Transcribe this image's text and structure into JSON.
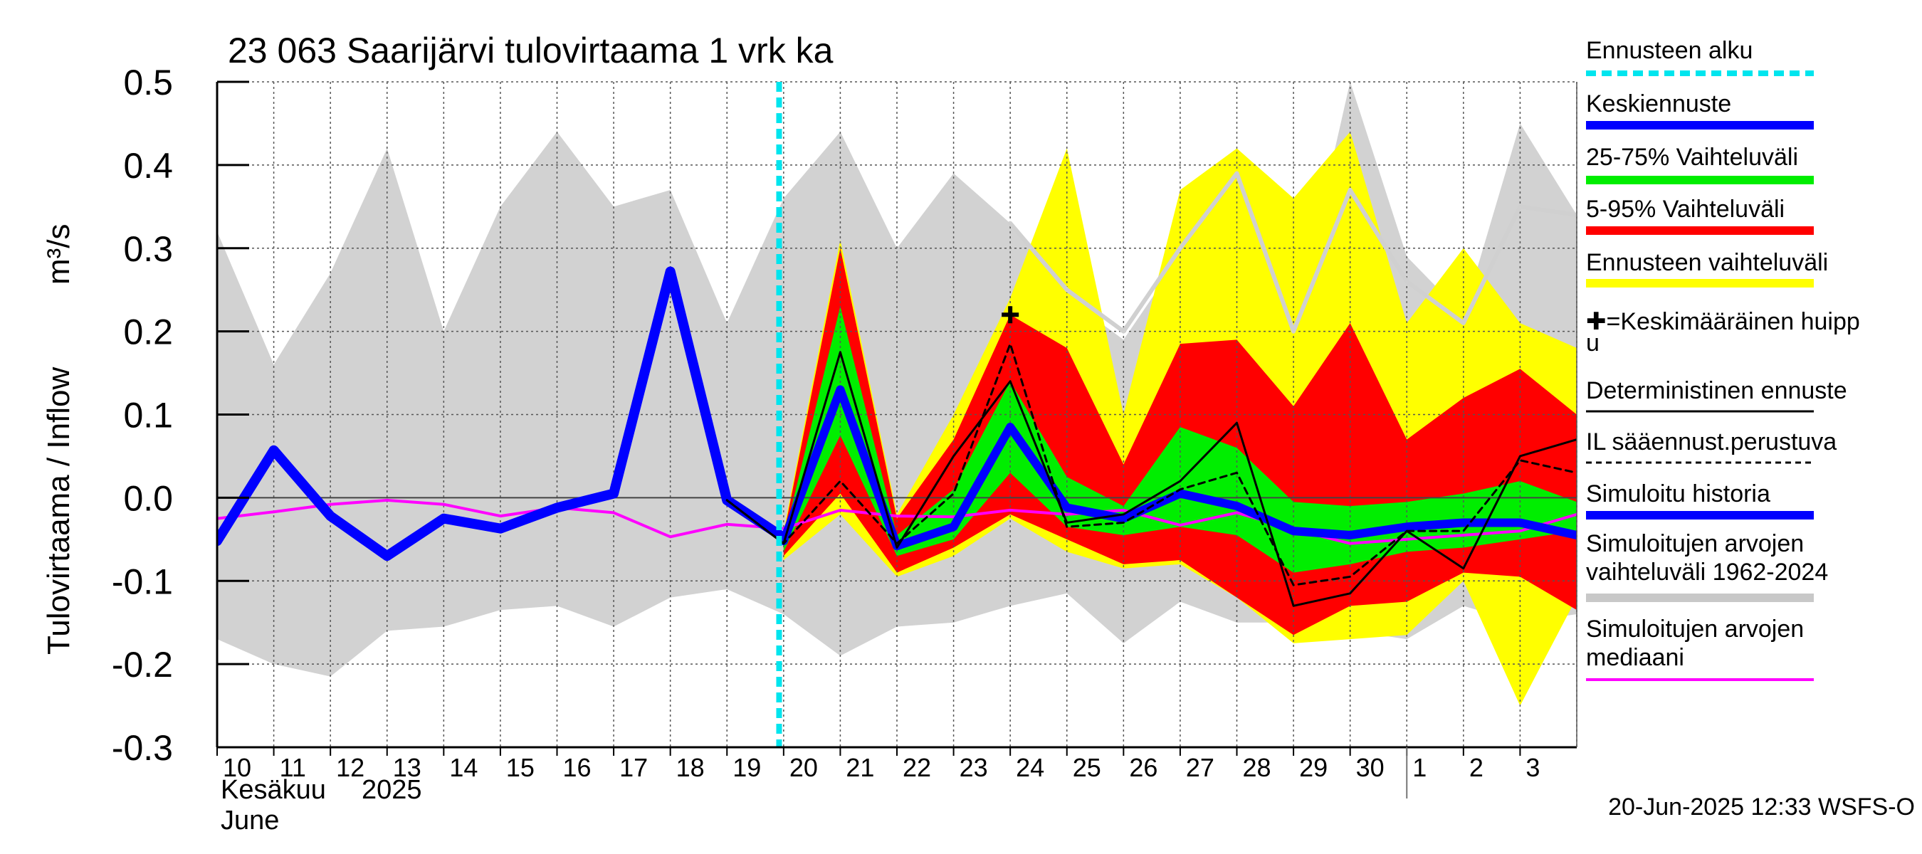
{
  "chart_data": {
    "type": "area",
    "title": "23 063 Saarijärvi tulovirtaama 1 vrk ka",
    "ylabel_fi": "Tulovirtaama / Inflow",
    "yunit": "m³/s",
    "ylim": [
      -0.3,
      0.5
    ],
    "yticks": [
      "0.5",
      "0.4",
      "0.3",
      "0.2",
      "0.1",
      "0.0",
      "-0.1",
      "-0.2",
      "-0.3"
    ],
    "grid": true,
    "x_start_day": 10,
    "x_days": 24,
    "xtick_labels": [
      "10",
      "11",
      "12",
      "13",
      "14",
      "15",
      "16",
      "17",
      "18",
      "19",
      "20",
      "21",
      "22",
      "23",
      "24",
      "25",
      "26",
      "27",
      "28",
      "29",
      "30",
      "1",
      "2",
      "3"
    ],
    "month_label_fi": "Kesäkuu",
    "year_label": "2025",
    "month_label_en": "June",
    "forecast_start_day": 20,
    "timestamp": "20-Jun-2025 12:33 WSFS-O",
    "legend_position": "right",
    "legend": [
      {
        "label": "Ennusteen alku",
        "color": "#00e5ee",
        "style": "dashed"
      },
      {
        "label": "Keskiennuste",
        "color": "#0000ff",
        "style": "thick"
      },
      {
        "label": "25-75% Vaihteluväli",
        "color": "#00ee00",
        "style": "thick"
      },
      {
        "label": "5-95% Vaihteluväli",
        "color": "#ff0000",
        "style": "thick"
      },
      {
        "label": "Ennusteen vaihteluväli",
        "color": "#ffff00",
        "style": "thick"
      },
      {
        "label": "✚=Keskimääräinen huippu",
        "color": "#000000",
        "style": "none"
      },
      {
        "label": "Deterministinen ennuste",
        "color": "#000000",
        "style": "thin"
      },
      {
        "label": "IL sääennust.perustuva",
        "color": "#000000",
        "style": "dotted"
      },
      {
        "label": "Simuloitu historia",
        "color": "#0000ff",
        "style": "thick"
      },
      {
        "label": "Simuloitujen arvojen vaihteluväli 1962-2024",
        "color": "#c8c8c8",
        "style": "thick"
      },
      {
        "label": "Simuloitujen arvojen mediaani",
        "color": "#ff00ff",
        "style": "medium"
      }
    ],
    "series": [
      {
        "name": "Simuloitujen arvojen vaihteluväli 1962-2024 max",
        "x": [
          10,
          11,
          12,
          13,
          14,
          15,
          16,
          17,
          18,
          19,
          20,
          21,
          22,
          23,
          24,
          25,
          26,
          27,
          28,
          29,
          30,
          31,
          32,
          33,
          34
        ],
        "values": [
          0.32,
          0.16,
          0.27,
          0.42,
          0.2,
          0.35,
          0.44,
          0.35,
          0.37,
          0.21,
          0.36,
          0.44,
          0.3,
          0.39,
          0.33,
          0.24,
          0.19,
          0.29,
          0.4,
          0.2,
          0.5,
          0.29,
          0.22,
          0.45,
          0.34
        ]
      },
      {
        "name": "Simuloitujen arvojen vaihteluväli 1962-2024 min",
        "x": [
          10,
          11,
          12,
          13,
          14,
          15,
          16,
          17,
          18,
          19,
          20,
          21,
          22,
          23,
          24,
          25,
          26,
          27,
          28,
          29,
          30,
          31,
          32,
          33,
          34
        ],
        "values": [
          -0.17,
          -0.2,
          -0.215,
          -0.16,
          -0.155,
          -0.135,
          -0.13,
          -0.155,
          -0.12,
          -0.11,
          -0.14,
          -0.19,
          -0.155,
          -0.15,
          -0.13,
          -0.115,
          -0.175,
          -0.125,
          -0.15,
          -0.15,
          -0.16,
          -0.17,
          -0.13,
          -0.15,
          -0.14
        ]
      },
      {
        "name": "Simuloitujen arvojen mediaani",
        "x": [
          10,
          11,
          12,
          13,
          14,
          15,
          16,
          17,
          18,
          19,
          20,
          21,
          22,
          23,
          24,
          25,
          26,
          27,
          28,
          29,
          30,
          31,
          32,
          33,
          34
        ],
        "values": [
          -0.025,
          -0.017,
          -0.008,
          -0.003,
          -0.008,
          -0.022,
          -0.012,
          -0.018,
          -0.047,
          -0.032,
          -0.037,
          -0.015,
          -0.022,
          -0.023,
          -0.015,
          -0.02,
          -0.015,
          -0.033,
          -0.018,
          -0.038,
          -0.055,
          -0.05,
          -0.045,
          -0.04,
          -0.02
        ]
      },
      {
        "name": "Simuloitu historia",
        "x": [
          10,
          11,
          12,
          13,
          14,
          15,
          16,
          17,
          18,
          19,
          20
        ],
        "values": [
          -0.052,
          0.057,
          -0.022,
          -0.07,
          -0.025,
          -0.037,
          -0.012,
          0.005,
          0.272,
          -0.003,
          -0.048
        ]
      },
      {
        "name": "Ennusteen vaihteluväli max",
        "x": [
          20,
          21,
          22,
          23,
          24,
          25,
          26,
          27,
          28,
          29,
          30,
          31,
          32,
          33,
          34
        ],
        "values": [
          -0.04,
          0.31,
          -0.02,
          0.1,
          0.24,
          0.42,
          0.1,
          0.37,
          0.42,
          0.36,
          0.44,
          0.21,
          0.3,
          0.21,
          0.18
        ]
      },
      {
        "name": "Ennusteen vaihteluväli min",
        "x": [
          20,
          21,
          22,
          23,
          24,
          25,
          26,
          27,
          28,
          29,
          30,
          31,
          32,
          33,
          34
        ],
        "values": [
          -0.075,
          -0.02,
          -0.095,
          -0.07,
          -0.025,
          -0.065,
          -0.085,
          -0.08,
          -0.12,
          -0.175,
          -0.17,
          -0.165,
          -0.1,
          -0.25,
          -0.12
        ]
      },
      {
        "name": "5-95% Vaihteluväli max",
        "x": [
          20,
          21,
          22,
          23,
          24,
          25,
          26,
          27,
          28,
          29,
          30,
          31,
          32,
          33,
          34
        ],
        "values": [
          -0.045,
          0.3,
          -0.025,
          0.07,
          0.22,
          0.18,
          0.04,
          0.185,
          0.19,
          0.11,
          0.21,
          0.07,
          0.12,
          0.155,
          0.1
        ]
      },
      {
        "name": "5-95% Vaihteluväli min",
        "x": [
          20,
          21,
          22,
          23,
          24,
          25,
          26,
          27,
          28,
          29,
          30,
          31,
          32,
          33,
          34
        ],
        "values": [
          -0.07,
          0.005,
          -0.09,
          -0.06,
          -0.02,
          -0.05,
          -0.08,
          -0.075,
          -0.12,
          -0.165,
          -0.13,
          -0.125,
          -0.09,
          -0.095,
          -0.135
        ]
      },
      {
        "name": "25-75% Vaihteluväli max",
        "x": [
          20,
          21,
          22,
          23,
          24,
          25,
          26,
          27,
          28,
          29,
          30,
          31,
          32,
          33,
          34
        ],
        "values": [
          -0.05,
          0.23,
          -0.045,
          0.01,
          0.14,
          0.025,
          -0.01,
          0.085,
          0.06,
          -0.005,
          -0.01,
          -0.005,
          0.005,
          0.02,
          -0.005
        ]
      },
      {
        "name": "25-75% Vaihteluväli min",
        "x": [
          20,
          21,
          22,
          23,
          24,
          25,
          26,
          27,
          28,
          29,
          30,
          31,
          32,
          33,
          34
        ],
        "values": [
          -0.065,
          0.075,
          -0.07,
          -0.05,
          0.03,
          -0.035,
          -0.045,
          -0.035,
          -0.045,
          -0.09,
          -0.08,
          -0.065,
          -0.06,
          -0.05,
          -0.04
        ]
      },
      {
        "name": "Keskiennuste",
        "x": [
          20,
          21,
          22,
          23,
          24,
          25,
          26,
          27,
          28,
          29,
          30,
          31,
          32,
          33,
          34
        ],
        "values": [
          -0.052,
          0.13,
          -0.058,
          -0.035,
          0.085,
          -0.012,
          -0.025,
          0.005,
          -0.01,
          -0.04,
          -0.045,
          -0.035,
          -0.03,
          -0.03,
          -0.045
        ]
      },
      {
        "name": "Deterministinen ennuste",
        "x": [
          19,
          20,
          21,
          22,
          23,
          24,
          25,
          26,
          27,
          28,
          29,
          30,
          31,
          32,
          33,
          34
        ],
        "values": [
          -0.003,
          -0.055,
          0.175,
          -0.06,
          0.05,
          0.14,
          -0.03,
          -0.02,
          0.02,
          0.09,
          -0.13,
          -0.115,
          -0.04,
          -0.085,
          0.05,
          0.07
        ]
      },
      {
        "name": "IL sääennust.perustuva",
        "x": [
          19,
          20,
          21,
          22,
          23,
          24,
          25,
          26,
          27,
          28,
          29,
          30,
          31,
          32,
          33,
          34
        ],
        "values": [
          -0.003,
          -0.055,
          0.02,
          -0.055,
          0.005,
          0.185,
          -0.035,
          -0.03,
          0.01,
          0.03,
          -0.105,
          -0.095,
          -0.04,
          -0.04,
          0.045,
          0.03
        ]
      },
      {
        "name": "Simuloitujen arvojen mediaani (forecast grey)",
        "x": [
          24,
          25,
          26,
          27,
          28,
          29,
          30,
          31,
          32,
          33,
          34
        ],
        "values": [
          0.33,
          0.25,
          0.2,
          0.3,
          0.39,
          0.2,
          0.37,
          0.26,
          0.21,
          0.35,
          0.34
        ]
      }
    ],
    "mean_peak": {
      "x": 24,
      "y": 0.22
    }
  }
}
